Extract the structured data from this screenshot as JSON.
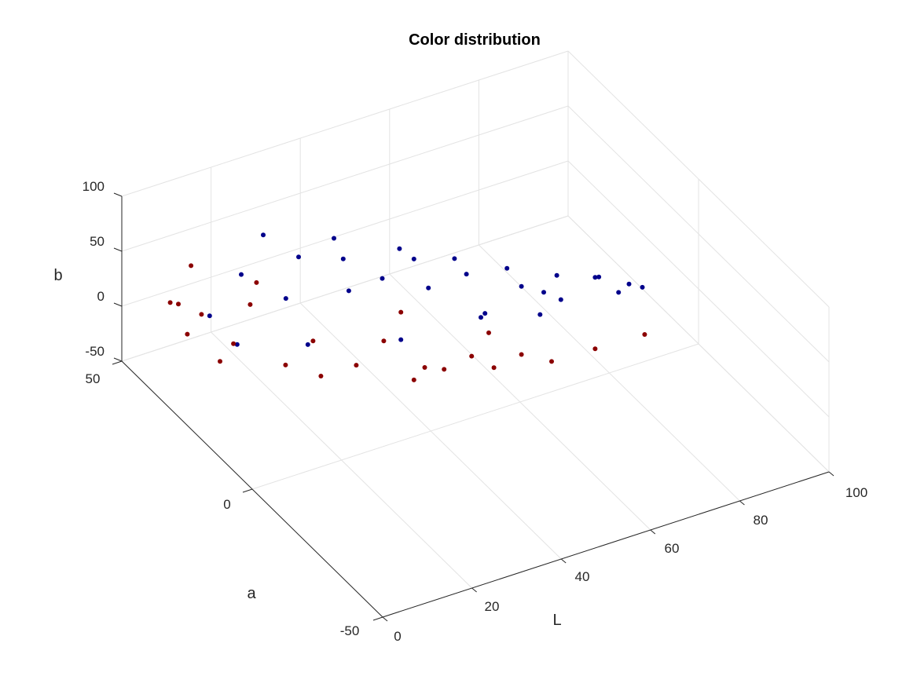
{
  "chart_data": {
    "type": "scatter",
    "title": "Color distribution",
    "xlabel": "L",
    "ylabel": "a",
    "zlabel": "b",
    "xlim": [
      0,
      100
    ],
    "ylim": [
      -50,
      50
    ],
    "zlim": [
      -50,
      100
    ],
    "x_ticks": [
      "0",
      "20",
      "40",
      "60",
      "80",
      "100"
    ],
    "y_ticks": [
      "-50",
      "0",
      "50"
    ],
    "z_ticks": [
      "-50",
      "0",
      "50",
      "100"
    ],
    "grid": true,
    "view": "3d",
    "series": [
      {
        "color": "#00008b",
        "points": [
          [
            20,
            30,
            85
          ],
          [
            30,
            20,
            92
          ],
          [
            40,
            12,
            88
          ],
          [
            50,
            8,
            75
          ],
          [
            60,
            5,
            60
          ],
          [
            70,
            3,
            45
          ],
          [
            78,
            2,
            35
          ],
          [
            85,
            1,
            22
          ],
          [
            88,
            1,
            15
          ],
          [
            85,
            5,
            5
          ],
          [
            75,
            10,
            0
          ],
          [
            60,
            15,
            -8
          ],
          [
            45,
            20,
            -20
          ],
          [
            30,
            30,
            -28
          ],
          [
            20,
            40,
            -38
          ],
          [
            15,
            42,
            -10
          ],
          [
            18,
            35,
            40
          ],
          [
            35,
            25,
            55
          ],
          [
            55,
            12,
            45
          ],
          [
            65,
            8,
            30
          ],
          [
            25,
            25,
            70
          ],
          [
            45,
            15,
            65
          ],
          [
            80,
            4,
            28
          ],
          [
            70,
            8,
            18
          ],
          [
            50,
            18,
            25
          ],
          [
            38,
            28,
            15
          ],
          [
            28,
            35,
            5
          ],
          [
            58,
            10,
            10
          ],
          [
            68,
            6,
            5
          ],
          [
            42,
            22,
            35
          ]
        ]
      },
      {
        "color": "#8b0000",
        "points": [
          [
            5,
            40,
            20
          ],
          [
            10,
            42,
            -20
          ],
          [
            15,
            38,
            -42
          ],
          [
            30,
            25,
            -45
          ],
          [
            45,
            15,
            -45
          ],
          [
            60,
            10,
            -42
          ],
          [
            70,
            5,
            -38
          ],
          [
            78,
            2,
            -30
          ],
          [
            85,
            -5,
            -10
          ],
          [
            12,
            40,
            0
          ],
          [
            20,
            35,
            10
          ],
          [
            35,
            20,
            -30
          ],
          [
            50,
            12,
            -35
          ],
          [
            25,
            30,
            -40
          ],
          [
            8,
            42,
            10
          ],
          [
            40,
            18,
            -10
          ],
          [
            55,
            10,
            -25
          ],
          [
            65,
            8,
            -32
          ],
          [
            18,
            38,
            -30
          ],
          [
            30,
            28,
            -20
          ],
          [
            45,
            20,
            5
          ],
          [
            60,
            12,
            -15
          ],
          [
            22,
            36,
            25
          ],
          [
            12,
            44,
            35
          ],
          [
            48,
            16,
            -40
          ]
        ]
      }
    ]
  }
}
